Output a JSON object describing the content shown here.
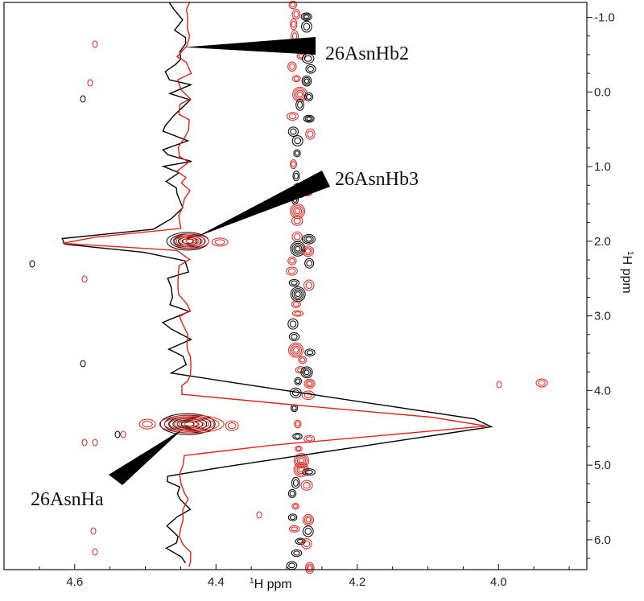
{
  "chart_data": {
    "type": "2D NMR contour spectrum with overlaid 1D slices",
    "xlabel_sup": "1",
    "xlabel": "H ppm",
    "ylabel_sup": "1",
    "ylabel": "H ppm",
    "xlim": [
      4.7,
      3.875
    ],
    "ylim": [
      -1.2,
      6.4
    ],
    "x_ticks": [
      4.6,
      4.4,
      4.2,
      4.0
    ],
    "x_tick_labels": [
      "4.6",
      "4.4",
      "4.2",
      "4.0"
    ],
    "y_ticks": [
      -1.0,
      0.0,
      1.0,
      2.0,
      3.0,
      4.0,
      5.0,
      6.0
    ],
    "y_tick_labels": [
      "-1.0",
      "0.0",
      "1.0",
      "2.0",
      "3.0",
      "4.0",
      "5.0",
      "6.0"
    ],
    "series": [
      {
        "color": "#000000"
      },
      {
        "color": "#e0241b"
      }
    ],
    "peaks": [
      {
        "label": "26AsnHb2",
        "x": 4.44,
        "y": -0.6
      },
      {
        "label": "26AsnHb3",
        "x": 4.44,
        "y": 2.0
      },
      {
        "label": "26AsnHa",
        "x": 4.44,
        "y": 4.45
      }
    ],
    "contour_strip_x": 4.285,
    "grid": false
  }
}
